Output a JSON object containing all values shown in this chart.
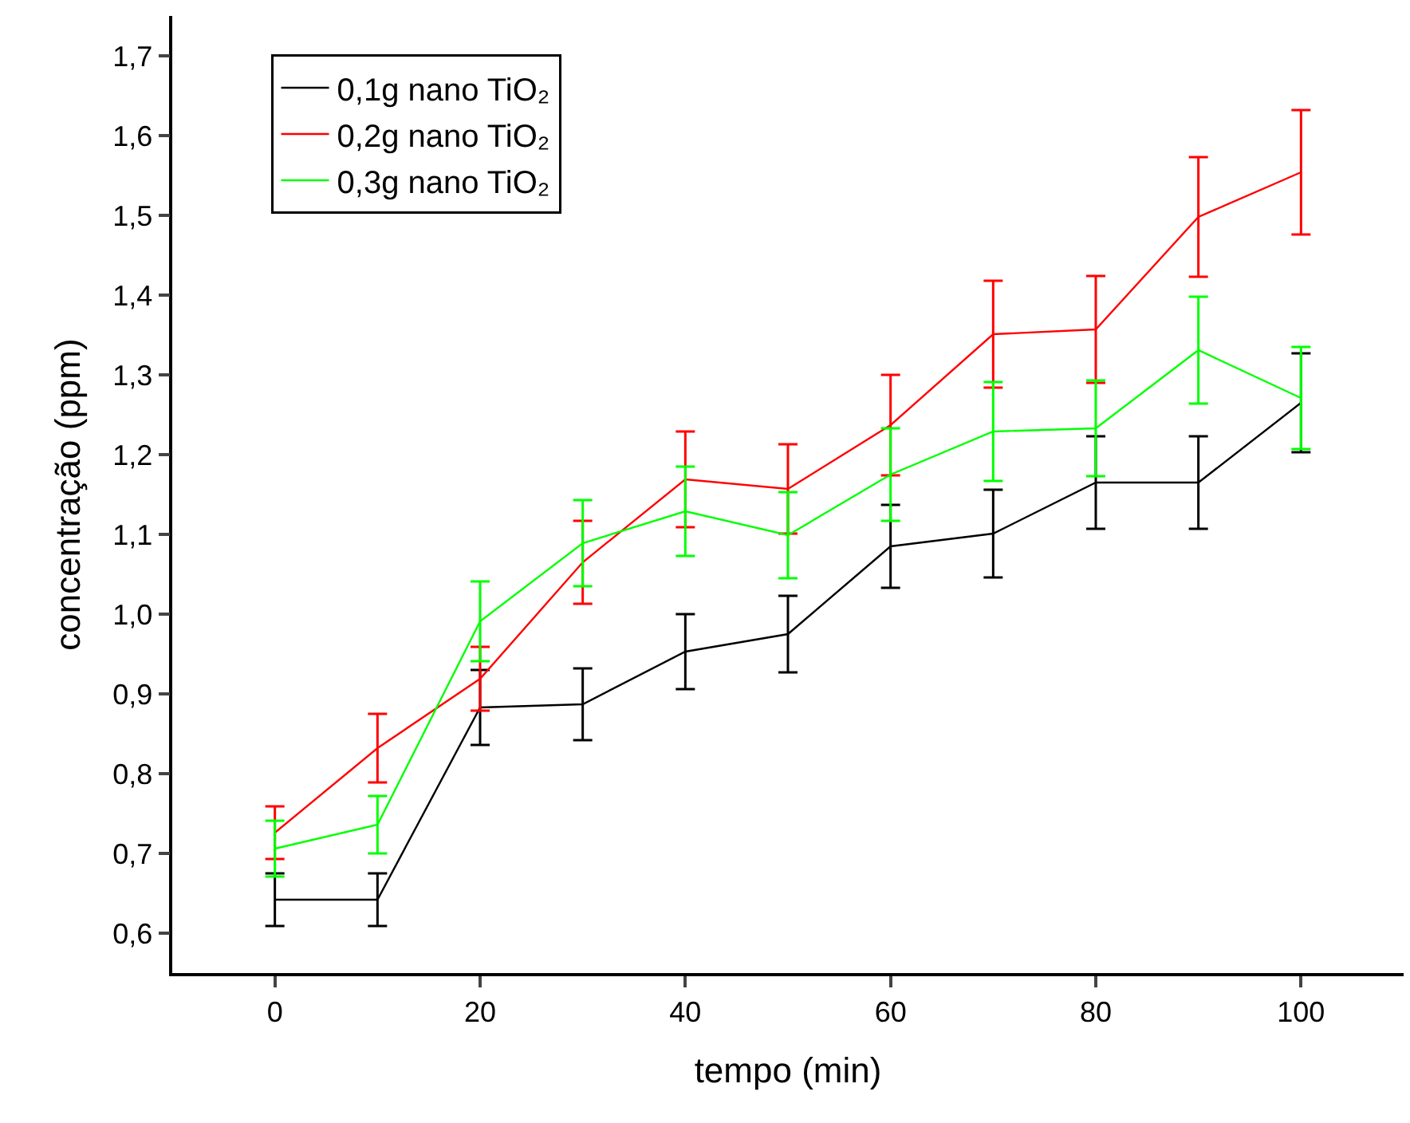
{
  "chart_data": {
    "type": "line",
    "xlabel": "tempo (min)",
    "ylabel": "concentração (ppm)",
    "x": [
      0,
      10,
      20,
      30,
      40,
      50,
      60,
      70,
      80,
      90,
      100
    ],
    "series": [
      {
        "name": "0,1g nano TiO₂",
        "color": "#000000",
        "values": [
          0.642,
          0.642,
          0.883,
          0.887,
          0.953,
          0.975,
          1.085,
          1.101,
          1.165,
          1.165,
          1.265
        ],
        "errors": [
          0.033,
          0.033,
          0.047,
          0.045,
          0.047,
          0.048,
          0.052,
          0.055,
          0.058,
          0.058,
          0.062
        ]
      },
      {
        "name": "0,2g nano TiO₂",
        "color": "#ff0000",
        "values": [
          0.726,
          0.832,
          0.919,
          1.065,
          1.169,
          1.157,
          1.237,
          1.351,
          1.357,
          1.498,
          1.554
        ],
        "errors": [
          0.033,
          0.043,
          0.04,
          0.052,
          0.06,
          0.056,
          0.063,
          0.067,
          0.067,
          0.075,
          0.078
        ]
      },
      {
        "name": "0,3g nano TiO₂",
        "color": "#00ff00",
        "values": [
          0.706,
          0.736,
          0.991,
          1.089,
          1.129,
          1.099,
          1.175,
          1.229,
          1.233,
          1.331,
          1.271
        ],
        "errors": [
          0.035,
          0.036,
          0.05,
          0.054,
          0.056,
          0.054,
          0.058,
          0.062,
          0.06,
          0.067,
          0.064
        ]
      }
    ],
    "xlim": [
      -10,
      110
    ],
    "xticks": [
      0,
      20,
      40,
      60,
      80,
      100
    ],
    "ylim": [
      0.55,
      1.75
    ],
    "yticks": [
      {
        "value": 0.6,
        "label": "0,6"
      },
      {
        "value": 0.7,
        "label": "0,7"
      },
      {
        "value": 0.8,
        "label": "0,8"
      },
      {
        "value": 0.9,
        "label": "0,9"
      },
      {
        "value": 1.0,
        "label": "1,0"
      },
      {
        "value": 1.1,
        "label": "1,1"
      },
      {
        "value": 1.2,
        "label": "1,2"
      },
      {
        "value": 1.3,
        "label": "1,3"
      },
      {
        "value": 1.4,
        "label": "1,4"
      },
      {
        "value": 1.5,
        "label": "1,5"
      },
      {
        "value": 1.6,
        "label": "1,6"
      },
      {
        "value": 1.7,
        "label": "1,7"
      }
    ],
    "legend": "top left",
    "grid": false,
    "marker": "none",
    "line_style": "solid"
  }
}
